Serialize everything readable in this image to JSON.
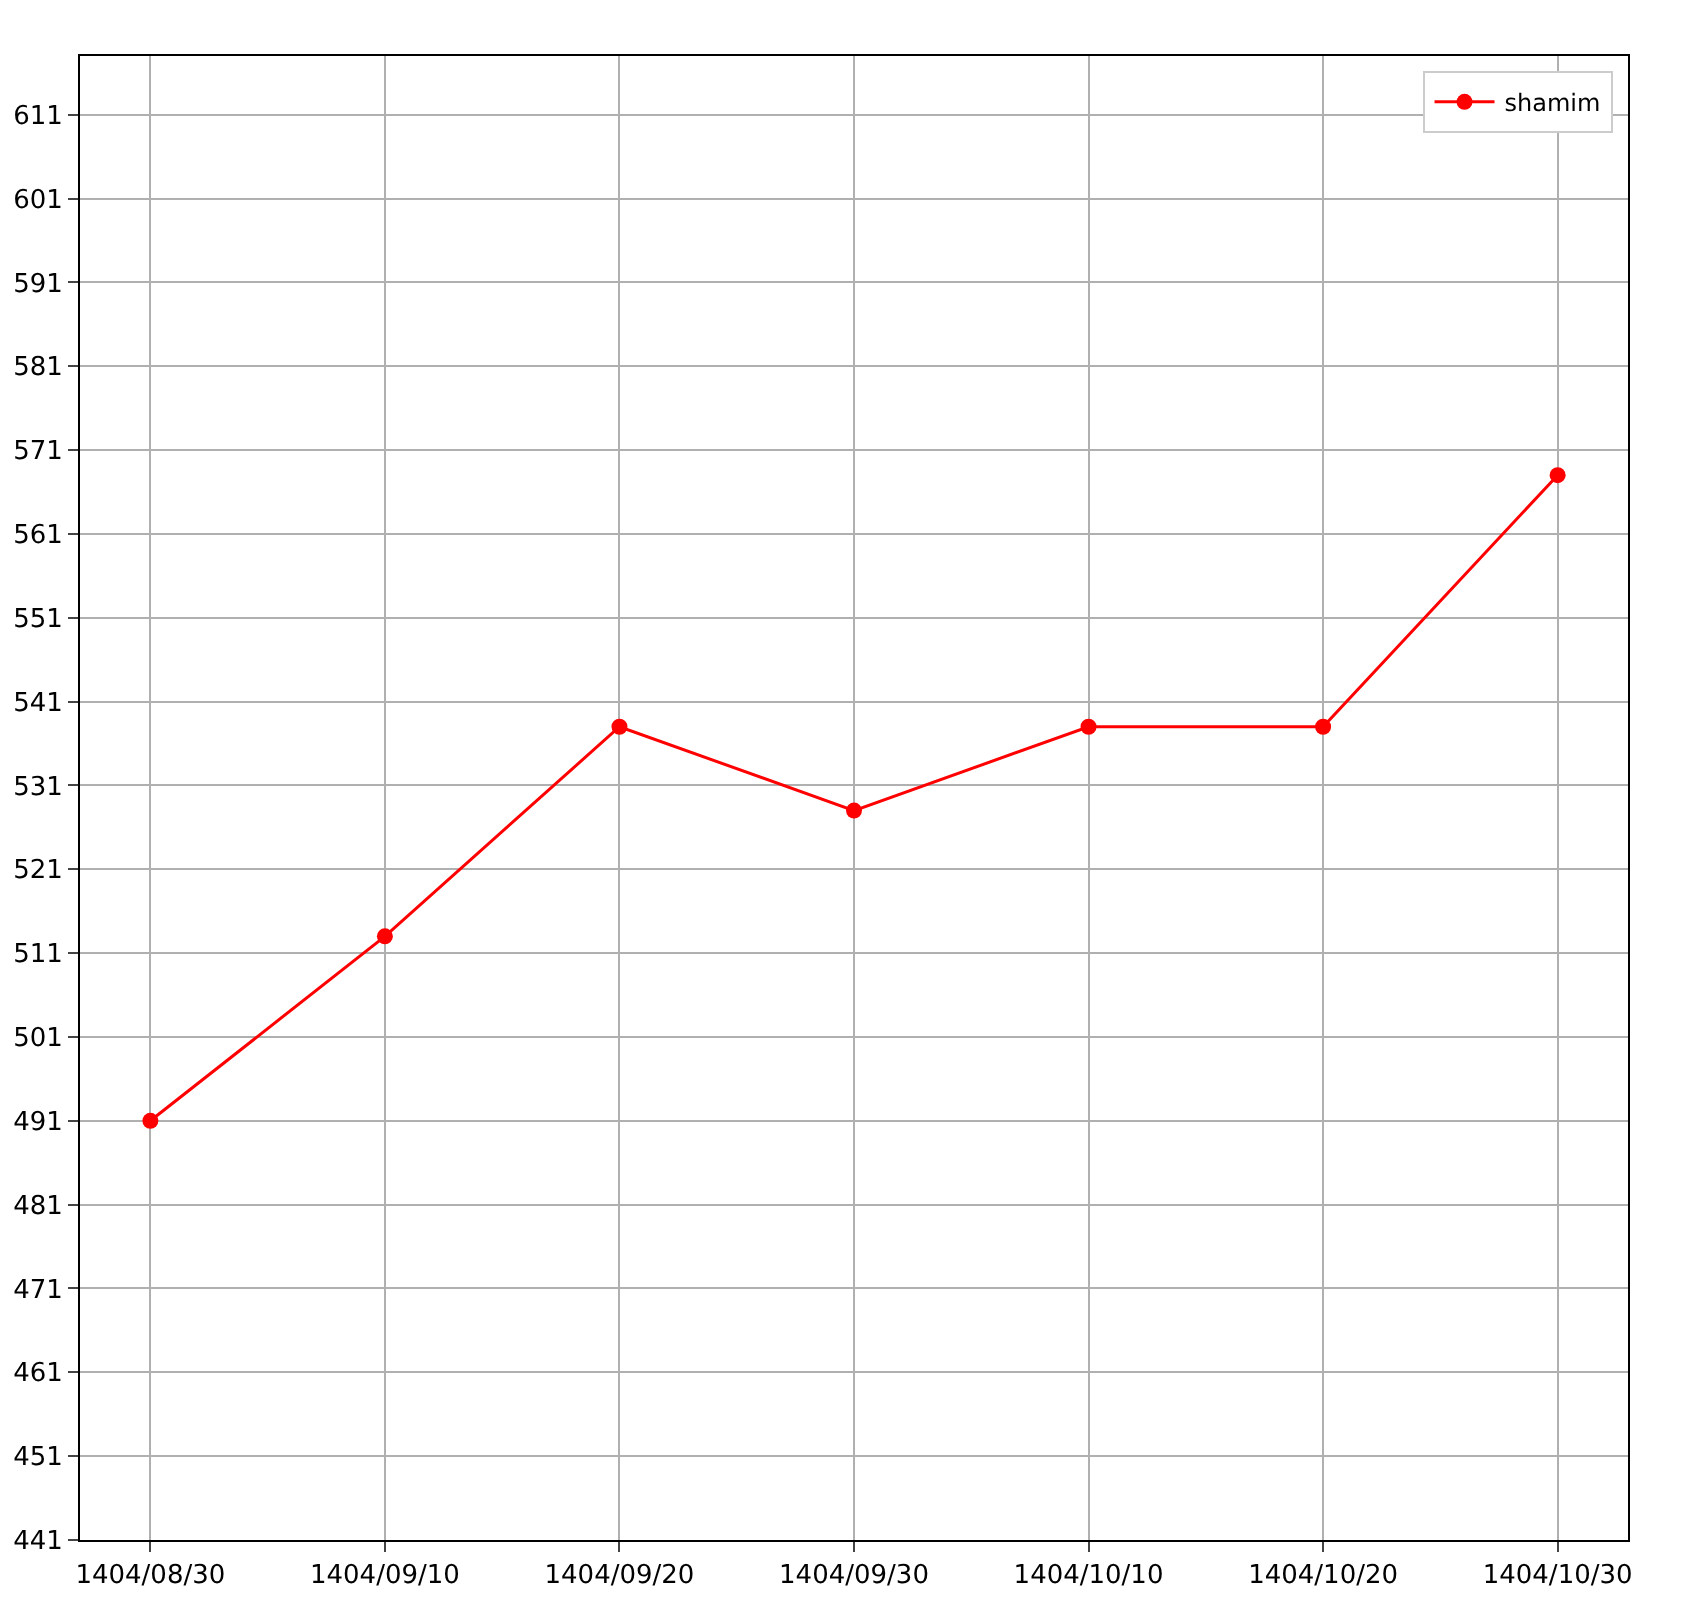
{
  "chart_data": {
    "type": "line",
    "categories": [
      "1404/08/30",
      "1404/09/10",
      "1404/09/20",
      "1404/09/30",
      "1404/10/10",
      "1404/10/20",
      "1404/10/30"
    ],
    "series": [
      {
        "name": "shamim",
        "color": "#ff0000",
        "values": [
          491,
          513,
          538,
          528,
          538,
          538,
          568
        ]
      }
    ],
    "ylim": [
      441,
      618
    ],
    "yticks": [
      441,
      451,
      461,
      471,
      481,
      491,
      501,
      511,
      521,
      531,
      541,
      551,
      561,
      571,
      581,
      591,
      601,
      611
    ],
    "grid": true,
    "legend": "top right",
    "marker": "circle",
    "line_style": "solid"
  }
}
